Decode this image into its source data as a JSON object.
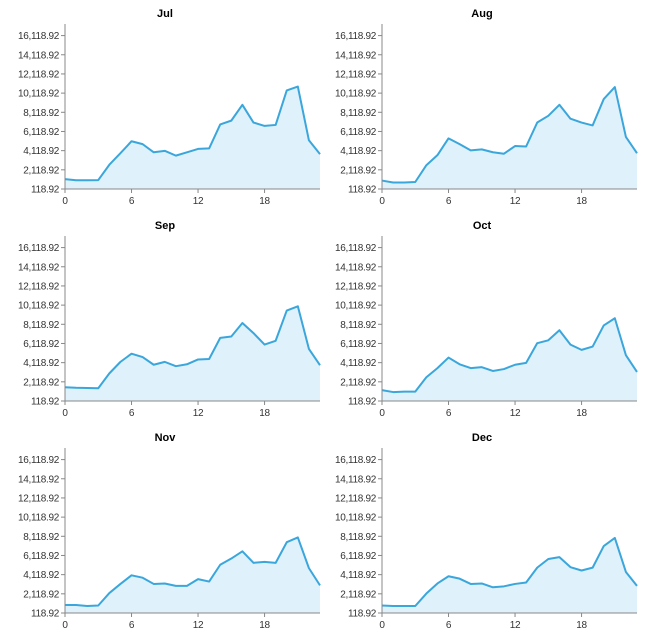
{
  "colors": {
    "line": "#3aa6dc",
    "fill": "#dff1fa",
    "axis": "#888888",
    "text": "#333333"
  },
  "chart_data": [
    {
      "type": "area",
      "title": "Jul",
      "x": [
        0,
        1,
        2,
        3,
        4,
        5,
        6,
        7,
        8,
        9,
        10,
        11,
        12,
        13,
        14,
        15,
        16,
        17,
        18,
        19,
        20,
        21,
        22,
        23
      ],
      "values": [
        1150,
        1030,
        1030,
        1050,
        2650,
        3850,
        5100,
        4800,
        3950,
        4100,
        3600,
        3950,
        4300,
        4350,
        6850,
        7250,
        8900,
        7050,
        6700,
        6800,
        10400,
        10800,
        5200,
        3750
      ],
      "yticks": [
        "16,118.92",
        "14,118.92",
        "12,118.92",
        "10,118.92",
        "8,118.92",
        "6,118.92",
        "4,118.92",
        "2,118.92",
        "118.92"
      ],
      "xticks": [
        "0",
        "6",
        "12",
        "18"
      ],
      "ylim": [
        118.92,
        17118.92
      ],
      "xlim": [
        0,
        23
      ]
    },
    {
      "type": "area",
      "title": "Aug",
      "x": [
        0,
        1,
        2,
        3,
        4,
        5,
        6,
        7,
        8,
        9,
        10,
        11,
        12,
        13,
        14,
        15,
        16,
        17,
        18,
        19,
        20,
        21,
        22,
        23
      ],
      "values": [
        1000,
        800,
        800,
        850,
        2600,
        3650,
        5400,
        4800,
        4150,
        4250,
        3950,
        3800,
        4600,
        4550,
        7050,
        7750,
        8900,
        7450,
        7050,
        6750,
        9500,
        10750,
        5550,
        3850
      ],
      "yticks": [
        "16,118.92",
        "14,118.92",
        "12,118.92",
        "10,118.92",
        "8,118.92",
        "6,118.92",
        "4,118.92",
        "2,118.92",
        "118.92"
      ],
      "xticks": [
        "0",
        "6",
        "12",
        "18"
      ],
      "ylim": [
        118.92,
        17118.92
      ],
      "xlim": [
        0,
        23
      ]
    },
    {
      "type": "area",
      "title": "Sep",
      "x": [
        0,
        1,
        2,
        3,
        4,
        5,
        6,
        7,
        8,
        9,
        10,
        11,
        12,
        13,
        14,
        15,
        16,
        17,
        18,
        19,
        20,
        21,
        22,
        23
      ],
      "values": [
        1550,
        1500,
        1480,
        1450,
        3000,
        4200,
        5050,
        4700,
        3900,
        4200,
        3750,
        3950,
        4450,
        4500,
        6700,
        6850,
        8250,
        7200,
        6000,
        6400,
        9550,
        10000,
        5550,
        3850
      ],
      "yticks": [
        "16,118.92",
        "14,118.92",
        "12,118.92",
        "10,118.92",
        "8,118.92",
        "6,118.92",
        "4,118.92",
        "2,118.92",
        "118.92"
      ],
      "xticks": [
        "0",
        "6",
        "12",
        "18"
      ],
      "ylim": [
        118.92,
        17118.92
      ],
      "xlim": [
        0,
        23
      ]
    },
    {
      "type": "area",
      "title": "Oct",
      "x": [
        0,
        1,
        2,
        3,
        4,
        5,
        6,
        7,
        8,
        9,
        10,
        11,
        12,
        13,
        14,
        15,
        16,
        17,
        18,
        19,
        20,
        21,
        22,
        23
      ],
      "values": [
        1250,
        1050,
        1100,
        1100,
        2600,
        3550,
        4650,
        3950,
        3550,
        3650,
        3250,
        3450,
        3900,
        4100,
        6150,
        6450,
        7500,
        6000,
        5450,
        5800,
        8000,
        8750,
        4900,
        3150
      ],
      "yticks": [
        "16,118.92",
        "14,118.92",
        "12,118.92",
        "10,118.92",
        "8,118.92",
        "6,118.92",
        "4,118.92",
        "2,118.92",
        "118.92"
      ],
      "xticks": [
        "0",
        "6",
        "12",
        "18"
      ],
      "ylim": [
        118.92,
        17118.92
      ],
      "xlim": [
        0,
        23
      ]
    },
    {
      "type": "area",
      "title": "Nov",
      "x": [
        0,
        1,
        2,
        3,
        4,
        5,
        6,
        7,
        8,
        9,
        10,
        11,
        12,
        13,
        14,
        15,
        16,
        17,
        18,
        19,
        20,
        21,
        22,
        23
      ],
      "values": [
        950,
        950,
        850,
        900,
        2200,
        3150,
        4050,
        3800,
        3150,
        3200,
        2950,
        2950,
        3650,
        3400,
        5150,
        5800,
        6550,
        5350,
        5450,
        5350,
        7500,
        8000,
        4800,
        3000
      ],
      "yticks": [
        "16,118.92",
        "14,118.92",
        "12,118.92",
        "10,118.92",
        "8,118.92",
        "6,118.92",
        "4,118.92",
        "2,118.92",
        "118.92"
      ],
      "xticks": [
        "0",
        "6",
        "12",
        "18"
      ],
      "ylim": [
        118.92,
        17118.92
      ],
      "xlim": [
        0,
        23
      ]
    },
    {
      "type": "area",
      "title": "Dec",
      "x": [
        0,
        1,
        2,
        3,
        4,
        5,
        6,
        7,
        8,
        9,
        10,
        11,
        12,
        13,
        14,
        15,
        16,
        17,
        18,
        19,
        20,
        21,
        22,
        23
      ],
      "values": [
        900,
        850,
        850,
        850,
        2150,
        3200,
        3950,
        3700,
        3150,
        3200,
        2800,
        2900,
        3150,
        3300,
        4850,
        5750,
        5950,
        4900,
        4550,
        4850,
        7100,
        7950,
        4400,
        2950
      ],
      "yticks": [
        "16,118.92",
        "14,118.92",
        "12,118.92",
        "10,118.92",
        "8,118.92",
        "6,118.92",
        "4,118.92",
        "2,118.92",
        "118.92"
      ],
      "xticks": [
        "0",
        "6",
        "12",
        "18"
      ],
      "ylim": [
        118.92,
        17118.92
      ],
      "xlim": [
        0,
        23
      ]
    }
  ]
}
